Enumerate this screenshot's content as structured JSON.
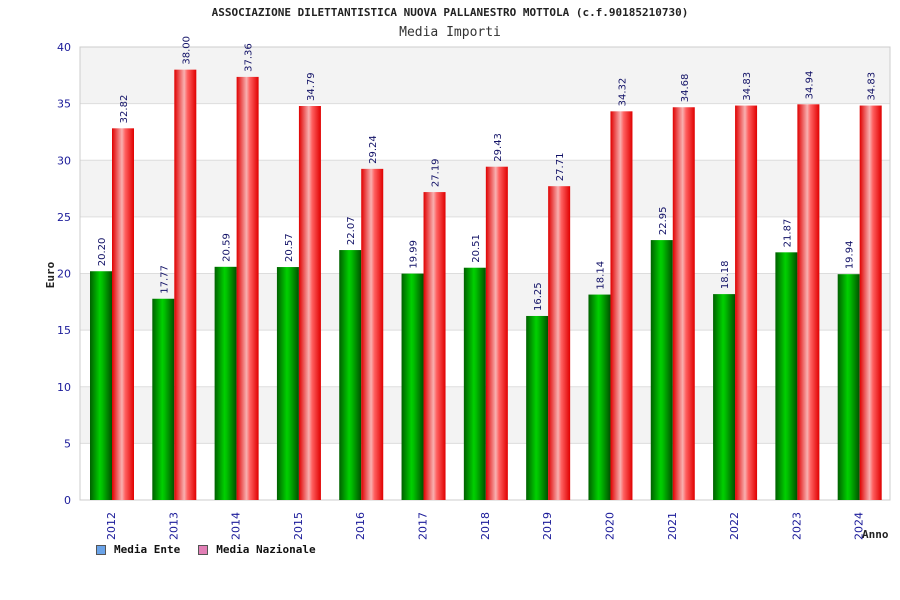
{
  "chart_data": {
    "type": "bar",
    "title": "ASSOCIAZIONE DILETTANTISTICA NUOVA PALLANESTRO MOTTOLA (c.f.90185210730)",
    "subtitle": "Media Importi",
    "xlabel": "Anno",
    "ylabel": "Euro",
    "ylim": [
      0,
      40
    ],
    "yticks": [
      "0",
      "5",
      "10",
      "15",
      "20",
      "25",
      "30",
      "35",
      "40"
    ],
    "grid": true,
    "legend_position": "bottom-left",
    "categories": [
      "2012",
      "2013",
      "2014",
      "2015",
      "2016",
      "2017",
      "2018",
      "2019",
      "2020",
      "2021",
      "2022",
      "2023",
      "2024"
    ],
    "series": [
      {
        "name": "Media Ente",
        "color": "#00b000",
        "legend_color": "#6aa3e8",
        "values": [
          20.2,
          17.77,
          20.59,
          20.57,
          22.07,
          19.99,
          20.51,
          16.25,
          18.14,
          22.95,
          18.18,
          21.87,
          19.94
        ],
        "labels": [
          "20.20",
          "17.77",
          "20.59",
          "20.57",
          "22.07",
          "19.99",
          "20.51",
          "16.25",
          "18.14",
          "22.95",
          "18.18",
          "21.87",
          "19.94"
        ]
      },
      {
        "name": "Media Nazionale",
        "color": "#ff0000",
        "legend_color": "#e27fb6",
        "values": [
          32.82,
          38.0,
          37.36,
          34.79,
          29.24,
          27.19,
          29.43,
          27.71,
          34.32,
          34.68,
          34.83,
          34.94,
          34.83
        ],
        "labels": [
          "32.82",
          "38.00",
          "37.36",
          "34.79",
          "29.24",
          "27.19",
          "29.43",
          "27.71",
          "34.32",
          "34.68",
          "34.83",
          "34.94",
          "34.83"
        ]
      }
    ]
  }
}
